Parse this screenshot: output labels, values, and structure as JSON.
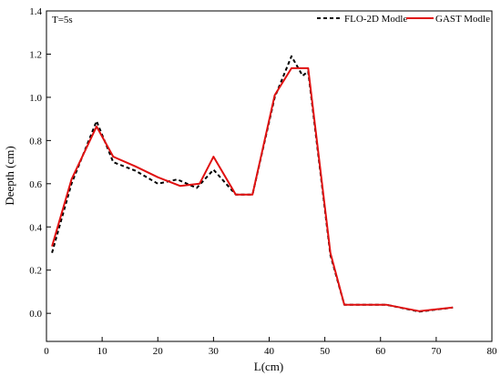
{
  "chart_data": {
    "type": "line",
    "annotation": "T=5s",
    "xlabel": "L(cm)",
    "ylabel": "Deepth (cm)",
    "xlim": [
      0,
      80
    ],
    "ylim": [
      -0.13,
      1.4
    ],
    "xticks": [
      0,
      10,
      20,
      30,
      40,
      50,
      60,
      70,
      80
    ],
    "yticks": [
      0.0,
      0.2,
      0.4,
      0.6,
      0.8,
      1.0,
      1.2,
      1.4
    ],
    "xtick_labels": [
      "0",
      "10",
      "20",
      "30",
      "40",
      "50",
      "60",
      "70",
      "80"
    ],
    "ytick_labels": [
      "0.0",
      "0.2",
      "0.4",
      "0.6",
      "0.8",
      "1.0",
      "1.2",
      "1.4"
    ],
    "grid": false,
    "legend": "top-right",
    "series": [
      {
        "name": "FLO-2D Modle",
        "color": "#000000",
        "style": "dashed",
        "x": [
          1,
          4.5,
          9,
          12,
          16,
          20,
          23.5,
          27,
          30,
          34,
          37,
          41,
          44,
          46,
          47,
          51,
          53.5,
          61,
          67,
          73
        ],
        "y": [
          0.28,
          0.6,
          0.89,
          0.7,
          0.66,
          0.6,
          0.62,
          0.58,
          0.665,
          0.55,
          0.55,
          1.0,
          1.19,
          1.1,
          1.12,
          0.27,
          0.04,
          0.04,
          0.008,
          0.027
        ]
      },
      {
        "name": "GAST Modle",
        "color": "#e01010",
        "style": "solid",
        "x": [
          1,
          4.5,
          9,
          12,
          16,
          20,
          24,
          27.5,
          30,
          34,
          37,
          41,
          44,
          46.5,
          47,
          51,
          53.5,
          61,
          67,
          73
        ],
        "y": [
          0.31,
          0.62,
          0.865,
          0.725,
          0.68,
          0.63,
          0.59,
          0.6,
          0.725,
          0.55,
          0.55,
          1.01,
          1.135,
          1.135,
          1.135,
          0.28,
          0.04,
          0.04,
          0.01,
          0.027
        ]
      }
    ]
  }
}
